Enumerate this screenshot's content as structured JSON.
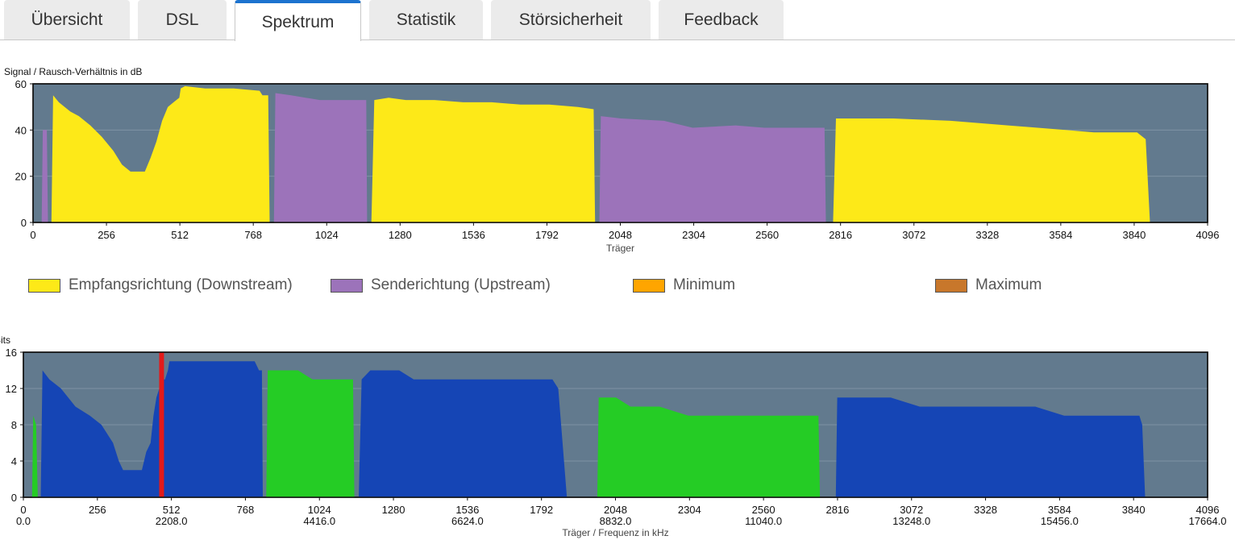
{
  "tabs": [
    {
      "label": "Übersicht",
      "active": false
    },
    {
      "label": "DSL",
      "active": false
    },
    {
      "label": "Spektrum",
      "active": true
    },
    {
      "label": "Statistik",
      "active": false
    },
    {
      "label": "Störsicherheit",
      "active": false
    },
    {
      "label": "Feedback",
      "active": false
    }
  ],
  "colors": {
    "plot_background": "#627a8e",
    "downstream": "#fde918",
    "upstream": "#9c73ba",
    "minimum": "#ffa500",
    "maximum": "#c8772b",
    "bits_downstream": "#1545b5",
    "bits_upstream": "#25cc25",
    "marker": "#e31a1a",
    "active_tab": "#1c73cf"
  },
  "legend": [
    {
      "label": "Empfangsrichtung (Downstream)",
      "color": "#fde918"
    },
    {
      "label": "Senderichtung (Upstream)",
      "color": "#9c73ba"
    },
    {
      "label": "Minimum",
      "color": "#ffa500"
    },
    {
      "label": "Maximum",
      "color": "#c8772b"
    }
  ],
  "chart_data": [
    {
      "type": "area",
      "ylabel": "Signal / Rausch-Verhältnis in dB",
      "xlabel": "Träger",
      "xlim": [
        0,
        4096
      ],
      "ylim": [
        0,
        60
      ],
      "grid": true,
      "x_ticks": [
        "0",
        "256",
        "512",
        "768",
        "1024",
        "1280",
        "1536",
        "1792",
        "2048",
        "2304",
        "2560",
        "2816",
        "3072",
        "3328",
        "3584",
        "3840",
        "4096"
      ],
      "y_ticks": [
        "0",
        "20",
        "40",
        "60"
      ],
      "series": [
        {
          "name": "Empfangsrichtung (Downstream)",
          "color": "#fde918",
          "points": [
            [
              64,
              0
            ],
            [
              70,
              55
            ],
            [
              90,
              52
            ],
            [
              130,
              48
            ],
            [
              160,
              46
            ],
            [
              200,
              42
            ],
            [
              240,
              37
            ],
            [
              280,
              31
            ],
            [
              310,
              25
            ],
            [
              340,
              22
            ],
            [
              370,
              22
            ],
            [
              390,
              22
            ],
            [
              410,
              28
            ],
            [
              430,
              35
            ],
            [
              450,
              44
            ],
            [
              470,
              50
            ],
            [
              490,
              52
            ],
            [
              510,
              54
            ],
            [
              515,
              58
            ],
            [
              530,
              59
            ],
            [
              600,
              58
            ],
            [
              700,
              58
            ],
            [
              790,
              57
            ],
            [
              800,
              55
            ],
            [
              820,
              55
            ],
            [
              825,
              0
            ]
          ]
        },
        {
          "name": "Empfangsrichtung (Downstream)",
          "color": "#fde918",
          "points": [
            [
              1180,
              0
            ],
            [
              1190,
              53
            ],
            [
              1240,
              54
            ],
            [
              1300,
              53
            ],
            [
              1400,
              53
            ],
            [
              1500,
              52
            ],
            [
              1600,
              52
            ],
            [
              1700,
              51
            ],
            [
              1800,
              51
            ],
            [
              1900,
              50
            ],
            [
              1955,
              49
            ],
            [
              1960,
              0
            ]
          ]
        },
        {
          "name": "Empfangsrichtung (Downstream)",
          "color": "#fde918",
          "points": [
            [
              2790,
              0
            ],
            [
              2800,
              45
            ],
            [
              2900,
              45
            ],
            [
              3000,
              45
            ],
            [
              3200,
              44
            ],
            [
              3400,
              42
            ],
            [
              3600,
              40
            ],
            [
              3700,
              39
            ],
            [
              3850,
              39
            ],
            [
              3880,
              36
            ],
            [
              3895,
              0
            ]
          ]
        },
        {
          "name": "Senderichtung (Upstream)",
          "color": "#9c73ba",
          "points": [
            [
              30,
              0
            ],
            [
              34,
              40
            ],
            [
              48,
              40
            ],
            [
              52,
              0
            ]
          ]
        },
        {
          "name": "Senderichtung (Upstream)",
          "color": "#9c73ba",
          "points": [
            [
              840,
              0
            ],
            [
              845,
              56
            ],
            [
              900,
              55
            ],
            [
              1000,
              53
            ],
            [
              1100,
              53
            ],
            [
              1162,
              53
            ],
            [
              1165,
              0
            ]
          ]
        },
        {
          "name": "Senderichtung (Upstream)",
          "color": "#9c73ba",
          "points": [
            [
              1975,
              0
            ],
            [
              1980,
              46
            ],
            [
              2050,
              45
            ],
            [
              2200,
              44
            ],
            [
              2300,
              41
            ],
            [
              2450,
              42
            ],
            [
              2550,
              41
            ],
            [
              2600,
              41
            ],
            [
              2760,
              41
            ],
            [
              2765,
              0
            ]
          ]
        }
      ]
    },
    {
      "type": "area",
      "ylabel": "Bits",
      "xlabel": "Träger / Frequenz in kHz",
      "xlim": [
        0,
        4096
      ],
      "ylim": [
        0,
        16
      ],
      "grid": true,
      "x_ticks": [
        "0",
        "256",
        "512",
        "768",
        "1024",
        "1280",
        "1536",
        "1792",
        "2048",
        "2304",
        "2560",
        "2816",
        "3072",
        "3328",
        "3584",
        "3840",
        "4096"
      ],
      "freq_ticks": [
        "0.0",
        "2208.0",
        "4416.0",
        "6624.0",
        "8832.0",
        "11040.0",
        "13248.0",
        "15456.0",
        "17664.0"
      ],
      "y_ticks": [
        "0",
        "4",
        "8",
        "12",
        "16"
      ],
      "marker_x": 478,
      "series": [
        {
          "name": "Empfangsrichtung (Downstream)",
          "color": "#1545b5",
          "points": [
            [
              60,
              0
            ],
            [
              66,
              14
            ],
            [
              90,
              13
            ],
            [
              130,
              12
            ],
            [
              180,
              10
            ],
            [
              230,
              9
            ],
            [
              270,
              8
            ],
            [
              290,
              7
            ],
            [
              310,
              6
            ],
            [
              330,
              4
            ],
            [
              345,
              3
            ],
            [
              410,
              3
            ],
            [
              425,
              5
            ],
            [
              440,
              6
            ],
            [
              450,
              9
            ],
            [
              460,
              11
            ],
            [
              470,
              12
            ],
            [
              478,
              13
            ],
            [
              490,
              13
            ],
            [
              500,
              14
            ],
            [
              505,
              15
            ],
            [
              600,
              15
            ],
            [
              720,
              15
            ],
            [
              800,
              15
            ],
            [
              815,
              14
            ],
            [
              825,
              14
            ],
            [
              828,
              0
            ]
          ]
        },
        {
          "name": "Empfangsrichtung (Downstream)",
          "color": "#1545b5",
          "points": [
            [
              1160,
              0
            ],
            [
              1170,
              13
            ],
            [
              1200,
              14
            ],
            [
              1300,
              14
            ],
            [
              1350,
              13
            ],
            [
              1500,
              13
            ],
            [
              1700,
              13
            ],
            [
              1830,
              13
            ],
            [
              1850,
              12
            ],
            [
              1880,
              0
            ]
          ]
        },
        {
          "name": "Empfangsrichtung (Downstream)",
          "color": "#1545b5",
          "points": [
            [
              2810,
              0
            ],
            [
              2815,
              11
            ],
            [
              2900,
              11
            ],
            [
              3000,
              11
            ],
            [
              3100,
              10
            ],
            [
              3200,
              10
            ],
            [
              3400,
              10
            ],
            [
              3500,
              10
            ],
            [
              3600,
              9
            ],
            [
              3700,
              9
            ],
            [
              3800,
              9
            ],
            [
              3860,
              9
            ],
            [
              3870,
              8
            ],
            [
              3880,
              0
            ]
          ]
        },
        {
          "name": "Senderichtung (Upstream)",
          "color": "#25cc25",
          "points": [
            [
              30,
              0
            ],
            [
              34,
              9
            ],
            [
              44,
              8
            ],
            [
              50,
              0
            ]
          ]
        },
        {
          "name": "Senderichtung (Upstream)",
          "color": "#25cc25",
          "points": [
            [
              840,
              0
            ],
            [
              845,
              14
            ],
            [
              900,
              14
            ],
            [
              950,
              14
            ],
            [
              1000,
              13
            ],
            [
              1100,
              13
            ],
            [
              1140,
              13
            ],
            [
              1145,
              0
            ]
          ]
        },
        {
          "name": "Senderichtung (Upstream)",
          "color": "#25cc25",
          "points": [
            [
              1985,
              0
            ],
            [
              1990,
              11
            ],
            [
              2050,
              11
            ],
            [
              2100,
              10
            ],
            [
              2200,
              10
            ],
            [
              2300,
              9
            ],
            [
              2400,
              9
            ],
            [
              2500,
              9
            ],
            [
              2600,
              9
            ],
            [
              2700,
              9
            ],
            [
              2750,
              9
            ],
            [
              2755,
              0
            ]
          ]
        }
      ]
    }
  ]
}
